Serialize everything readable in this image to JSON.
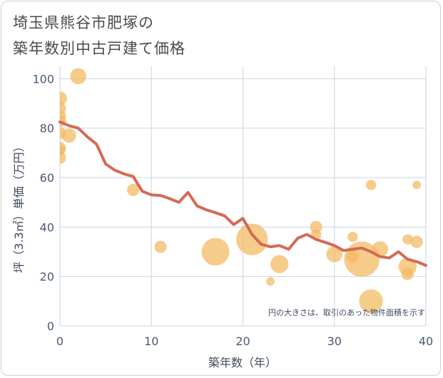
{
  "title_line1": "埼玉県熊谷市肥塚の",
  "title_line2": "築年数別中古戸建て価格",
  "chart_data": {
    "type": "scatter",
    "xlabel": "築年数（年）",
    "ylabel": "坪（3.3㎡）単価（万円）",
    "xlim": [
      0,
      40
    ],
    "ylim": [
      0,
      105
    ],
    "xticks": [
      0,
      10,
      20,
      30,
      40
    ],
    "yticks": [
      0,
      20,
      40,
      60,
      80,
      100
    ],
    "grid": true,
    "note": "円の大きさは、取引のあった物件面積を示す",
    "colors": {
      "bubble": "#f2b95e",
      "line": "#d26b55",
      "grid": "#c9d6e3"
    },
    "bubbles": [
      {
        "x": 2,
        "y": 101,
        "size": 3
      },
      {
        "x": 0,
        "y": 92,
        "size": 2.5
      },
      {
        "x": 0,
        "y": 88,
        "size": 2
      },
      {
        "x": 0,
        "y": 85,
        "size": 2
      },
      {
        "x": 0,
        "y": 83,
        "size": 2
      },
      {
        "x": 0,
        "y": 78,
        "size": 2
      },
      {
        "x": 1,
        "y": 77,
        "size": 2.5
      },
      {
        "x": 0,
        "y": 72,
        "size": 2
      },
      {
        "x": 0,
        "y": 71,
        "size": 1.5
      },
      {
        "x": 0,
        "y": 68,
        "size": 2
      },
      {
        "x": 8,
        "y": 55,
        "size": 2
      },
      {
        "x": 11,
        "y": 32,
        "size": 2
      },
      {
        "x": 17,
        "y": 30,
        "size": 6
      },
      {
        "x": 21,
        "y": 35,
        "size": 7
      },
      {
        "x": 23,
        "y": 18,
        "size": 1
      },
      {
        "x": 24,
        "y": 25,
        "size": 3.5
      },
      {
        "x": 28,
        "y": 40,
        "size": 2
      },
      {
        "x": 28,
        "y": 37,
        "size": 1.5
      },
      {
        "x": 30,
        "y": 29,
        "size": 3
      },
      {
        "x": 32,
        "y": 36,
        "size": 1.5
      },
      {
        "x": 32,
        "y": 28,
        "size": 2
      },
      {
        "x": 33,
        "y": 27,
        "size": 8
      },
      {
        "x": 34,
        "y": 57,
        "size": 1.5
      },
      {
        "x": 34,
        "y": 10,
        "size": 5
      },
      {
        "x": 35,
        "y": 31,
        "size": 3
      },
      {
        "x": 38,
        "y": 35,
        "size": 1.5
      },
      {
        "x": 38,
        "y": 24,
        "size": 3.5
      },
      {
        "x": 38,
        "y": 21,
        "size": 2
      },
      {
        "x": 39,
        "y": 57,
        "size": 1
      },
      {
        "x": 39,
        "y": 34,
        "size": 2
      }
    ],
    "trend": {
      "x": [
        0,
        1,
        2,
        3,
        4,
        5,
        6,
        7,
        8,
        9,
        10,
        11,
        12,
        13,
        14,
        15,
        16,
        17,
        18,
        19,
        20,
        21,
        22,
        23,
        24,
        25,
        26,
        27,
        28,
        29,
        30,
        31,
        32,
        33,
        34,
        35,
        36,
        37,
        38,
        39,
        40
      ],
      "y": [
        82.5,
        81,
        80,
        76.5,
        73.5,
        65.5,
        63,
        61.5,
        60.5,
        54.5,
        53,
        52.8,
        51.5,
        50,
        54,
        48.5,
        47,
        45.8,
        44.5,
        41,
        43.5,
        37,
        33,
        32,
        32.5,
        31,
        35.5,
        37,
        35,
        33.8,
        32.5,
        30.5,
        31,
        31.5,
        30,
        28,
        27.5,
        30,
        27,
        26,
        24.5
      ]
    }
  }
}
